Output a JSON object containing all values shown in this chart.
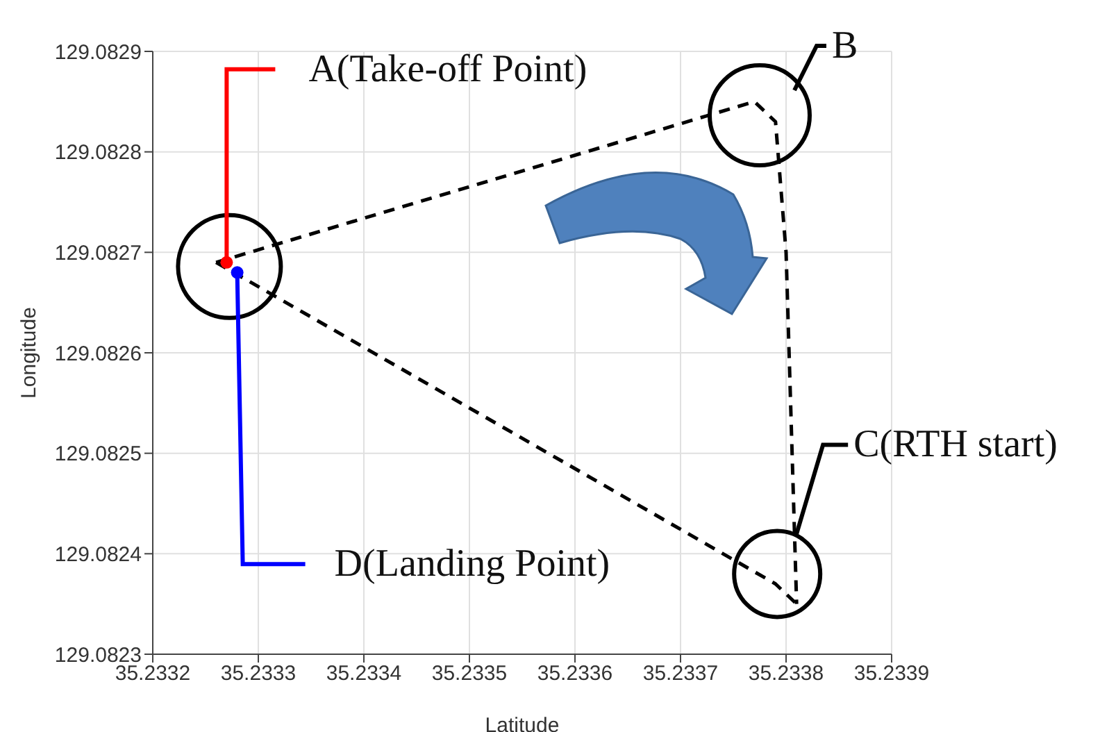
{
  "chart_data": {
    "type": "line",
    "xlabel": "Latitude",
    "ylabel": "Longitude",
    "xlim": [
      35.2332,
      35.2339
    ],
    "xticks": [
      35.2332,
      35.2333,
      35.2334,
      35.2335,
      35.2336,
      35.2337,
      35.2338,
      35.2339
    ],
    "ylim": [
      129.0823,
      129.0829
    ],
    "yticks": [
      129.0823,
      129.0824,
      129.0825,
      129.0826,
      129.0827,
      129.0828,
      129.0829
    ],
    "grid": true,
    "line_style": "dashed",
    "series": [
      {
        "color": "#000000",
        "marker": "none",
        "x": [
          35.23326,
          35.23377,
          35.23379,
          35.2338,
          35.23381
        ],
        "values": [
          129.08269,
          129.08285,
          129.08283,
          129.0827,
          129.08235
        ]
      },
      {
        "color": "#000000",
        "marker": "none",
        "x": [
          35.23326,
          35.23379,
          35.23381
        ],
        "values": [
          129.08269,
          129.08237,
          129.08235
        ]
      },
      {
        "type": "scatter",
        "color": "#ff0000",
        "marker": "circle",
        "x": [
          35.23327
        ],
        "values": [
          129.08269
        ]
      },
      {
        "type": "scatter",
        "color": "#0000ff",
        "marker": "circle",
        "x": [
          35.23328
        ],
        "values": [
          129.08268
        ]
      }
    ],
    "annotations": [
      {
        "text": "A(Take-off Point)",
        "x": 35.23327,
        "y": 129.08269
      },
      "B",
      {
        "text": "C(RTH start)",
        "x": 35.23381,
        "y": 129.08242
      },
      {
        "text": "D(Landing Point)",
        "x": 35.23328,
        "y": 129.08268
      }
    ]
  }
}
